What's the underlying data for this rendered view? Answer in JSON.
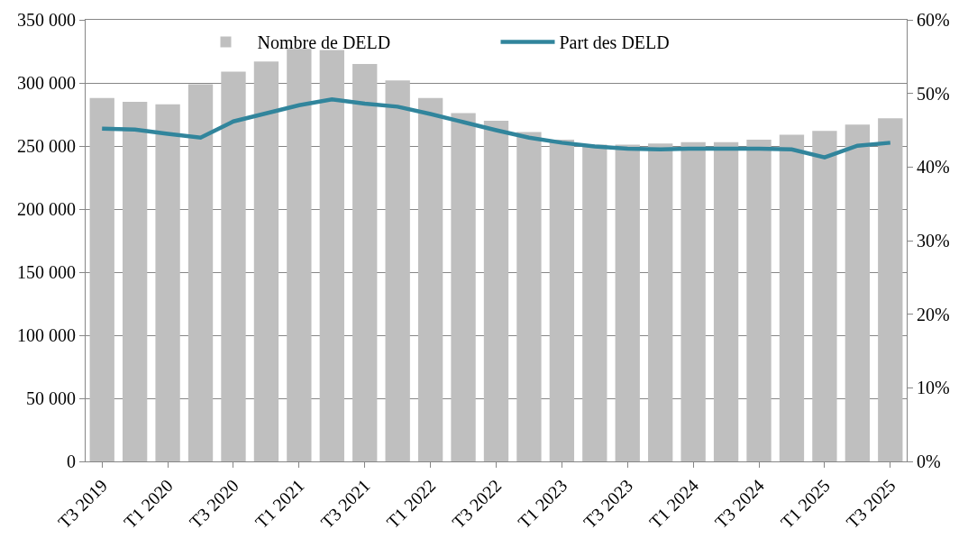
{
  "chart_data": {
    "type": "bar",
    "categories": [
      "T3 2019",
      null,
      "T1 2020",
      null,
      "T3 2020",
      null,
      "T1 2021",
      null,
      "T3 2021",
      null,
      "T1 2022",
      null,
      "T3 2022",
      null,
      "T1 2023",
      null,
      "T3 2023",
      null,
      "T1 2024",
      null,
      "T3 2024",
      null,
      "T1 2025",
      null,
      "T3 2025"
    ],
    "series": [
      {
        "name": "Nombre de DELD",
        "color": "#bfbfbf",
        "values": [
          288000,
          285000,
          283000,
          299000,
          309000,
          317000,
          327000,
          326000,
          315000,
          302000,
          288000,
          276000,
          270000,
          261000,
          255000,
          251000,
          251000,
          252000,
          253000,
          253000,
          255000,
          259000,
          262000,
          267000,
          272000
        ]
      },
      {
        "name": "Part des DELD",
        "type": "line",
        "axis": "y2",
        "color": "#31859c",
        "values": [
          45.2,
          45.1,
          44.5,
          44.0,
          46.2,
          47.3,
          48.4,
          49.2,
          48.6,
          48.2,
          47.2,
          46.1,
          45.0,
          44.0,
          43.3,
          42.8,
          42.5,
          42.4,
          42.5,
          42.5,
          42.5,
          42.4,
          41.3,
          42.9,
          43.3
        ]
      }
    ],
    "ylim": [
      0,
      350000
    ],
    "yticks": [
      {
        "value": 0,
        "label": "0"
      },
      {
        "value": 50000,
        "label": "50 000"
      },
      {
        "value": 100000,
        "label": "100 000"
      },
      {
        "value": 150000,
        "label": "150 000"
      },
      {
        "value": 200000,
        "label": "200 000"
      },
      {
        "value": 250000,
        "label": "250 000"
      },
      {
        "value": 300000,
        "label": "300 000"
      },
      {
        "value": 350000,
        "label": "350 000"
      }
    ],
    "y2lim": [
      0,
      60
    ],
    "y2ticks": [
      {
        "value": 0,
        "label": "0%"
      },
      {
        "value": 10,
        "label": "10%"
      },
      {
        "value": 20,
        "label": "20%"
      },
      {
        "value": 30,
        "label": "30%"
      },
      {
        "value": 40,
        "label": "40%"
      },
      {
        "value": 50,
        "label": "50%"
      },
      {
        "value": 60,
        "label": "60%"
      }
    ],
    "grid": "y",
    "legend": "top",
    "marker": "none",
    "line_style": "solid"
  }
}
